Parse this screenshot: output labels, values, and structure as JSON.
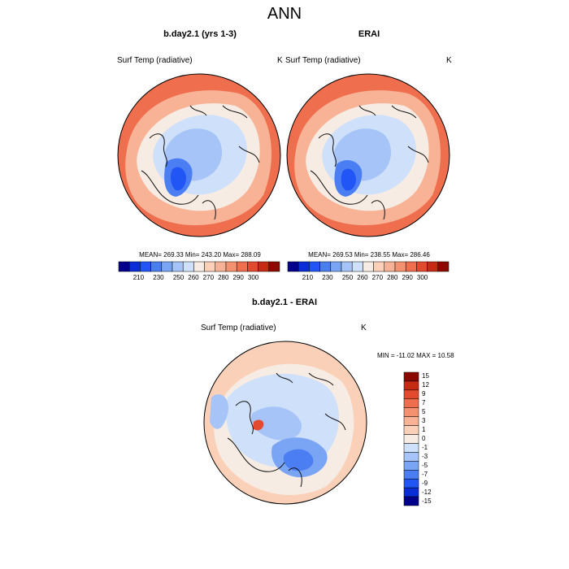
{
  "main_title": "ANN",
  "colors": {
    "hbar": [
      "#00008b",
      "#0a2dd8",
      "#2155f5",
      "#4a7ef2",
      "#7aa5f4",
      "#a6c4f7",
      "#cfe0fa",
      "#f6ece3",
      "#fbd0b9",
      "#f8b396",
      "#f49170",
      "#ee6e4e",
      "#e44a2f",
      "#c52a12",
      "#8b0a00"
    ],
    "vbar": [
      "#00008b",
      "#0a2dd8",
      "#2155f5",
      "#4a7ef2",
      "#7aa5f4",
      "#a6c4f7",
      "#cfe0fa",
      "#f6ece3",
      "#fbd0b9",
      "#f8b396",
      "#f49170",
      "#ee6e4e",
      "#e44a2f",
      "#c52a12",
      "#8b0a00"
    ]
  },
  "chart_data": [
    {
      "type": "heatmap",
      "projection": "north polar stereographic",
      "title": "b.day2.1 (yrs 1-3)",
      "variable": "Surf Temp (radiative)",
      "units": "K",
      "stats": {
        "mean": "269.33",
        "min": "243.20",
        "max": "288.09"
      },
      "stats_label": "MEAN= 269.33  Min= 243.20  Max= 288.09",
      "colorbar_ticks": [
        "210",
        "230",
        "250",
        "260",
        "270",
        "280",
        "290",
        "300"
      ],
      "colorbar_range": [
        210,
        300
      ]
    },
    {
      "type": "heatmap",
      "projection": "north polar stereographic",
      "title": "ERAI",
      "variable": "Surf Temp (radiative)",
      "units": "K",
      "stats": {
        "mean": "269.53",
        "min": "238.55",
        "max": "286.46"
      },
      "stats_label": "MEAN= 269.53  Min= 238.55  Max= 286.46",
      "colorbar_ticks": [
        "210",
        "230",
        "250",
        "260",
        "270",
        "280",
        "290",
        "300"
      ],
      "colorbar_range": [
        210,
        300
      ]
    },
    {
      "type": "heatmap",
      "projection": "north polar stereographic",
      "title": "b.day2.1 - ERAI",
      "variable": "Surf Temp (radiative)",
      "units": "K",
      "stats": {
        "min": "-11.02",
        "max": "10.58"
      },
      "stats_label": "MIN = -11.02 MAX =  10.58",
      "colorbar_ticks": [
        "15",
        "12",
        "9",
        "7",
        "5",
        "3",
        "1",
        "0",
        "-1",
        "-3",
        "-5",
        "-7",
        "-9",
        "-12",
        "-15"
      ],
      "colorbar_range": [
        -15,
        15
      ]
    }
  ]
}
